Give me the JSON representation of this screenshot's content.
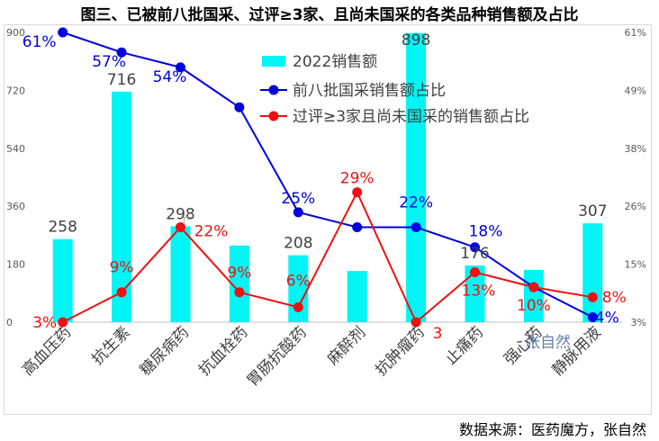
{
  "title": "图三、已被前八批国采、过评≥3家、且尚未国采的各类品种销售额及占比",
  "source": "数据来源：医药魔方，张自然",
  "watermark": "张自然",
  "chart_data": {
    "type": "bar",
    "categories": [
      "高血压药",
      "抗生素",
      "糖尿病药",
      "抗血栓药",
      "胃肠抗酸药",
      "麻醉剂",
      "抗肿瘤药",
      "止痛药",
      "强心药",
      "静脉用液"
    ],
    "left_axis": {
      "min": 0,
      "max": 900,
      "ticks": [
        "0",
        "180",
        "360",
        "540",
        "720",
        "900"
      ]
    },
    "right_axis": {
      "min": 3,
      "max": 61,
      "ticks": [
        "3%",
        "15%",
        "26%",
        "38%",
        "49%",
        "61%"
      ]
    },
    "series": [
      {
        "name": "2022销售额",
        "type": "bar",
        "axis": "left",
        "color": "#00f5f5",
        "values": [
          258,
          716,
          298,
          238,
          208,
          159,
          898,
          176,
          162,
          307
        ],
        "labels": [
          "258",
          "716",
          "298",
          "",
          "208",
          "",
          "898",
          "176",
          "",
          "307"
        ]
      },
      {
        "name": "前八批国采销售额占比",
        "type": "line",
        "axis": "right",
        "color": "#0000e0",
        "values": [
          61,
          57,
          54,
          46,
          25,
          22,
          22,
          18,
          10,
          4
        ],
        "labels": [
          "61%",
          "57%",
          "54%",
          "",
          "25%",
          "",
          "22%",
          "18%",
          "",
          "4%"
        ]
      },
      {
        "name": "过评≥3家且尚未国采的销售额占比",
        "type": "line",
        "axis": "right",
        "color": "#ee1111",
        "values": [
          3,
          9,
          22,
          9,
          6,
          29,
          3,
          13,
          10,
          8
        ],
        "labels": [
          "3%",
          "9%",
          "22%",
          "9%",
          "6%",
          "29%",
          "3",
          "13%",
          "10%",
          "8%"
        ]
      }
    ],
    "legend_position": "top-center"
  }
}
